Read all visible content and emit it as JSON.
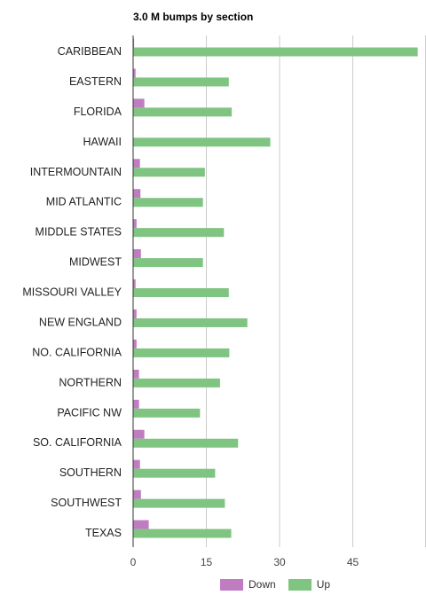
{
  "chart_data": {
    "type": "bar",
    "orientation": "horizontal",
    "title": "3.0 M bumps by section",
    "xlabel": "",
    "ylabel": "",
    "categories": [
      "CARIBBEAN",
      "EASTERN",
      "FLORIDA",
      "HAWAII",
      "INTERMOUNTAIN",
      "MID ATLANTIC",
      "MIDDLE STATES",
      "MIDWEST",
      "MISSOURI VALLEY",
      "NEW ENGLAND",
      "NO. CALIFORNIA",
      "NORTHERN",
      "PACIFIC NW",
      "SO. CALIFORNIA",
      "SOUTHERN",
      "SOUTHWEST",
      "TEXAS"
    ],
    "series": [
      {
        "name": "Down",
        "color": "#c07cc1",
        "values": [
          0.2,
          0.5,
          2.3,
          0,
          1.4,
          1.5,
          0.7,
          1.6,
          0.5,
          0.7,
          0.7,
          1.2,
          1.2,
          2.3,
          1.4,
          1.6,
          3.2
        ]
      },
      {
        "name": "Up",
        "color": "#80c482",
        "values": [
          58.3,
          19.6,
          20.2,
          28.1,
          14.7,
          14.3,
          18.6,
          14.3,
          19.6,
          23.4,
          19.7,
          17.8,
          13.7,
          21.5,
          16.8,
          18.8,
          20.1
        ]
      }
    ],
    "xlim": [
      0,
      60
    ],
    "xticks": [
      "0",
      "15",
      "30",
      "45"
    ],
    "xtick_values": [
      0,
      15,
      30,
      45
    ],
    "grid": true,
    "legend": "bottom"
  }
}
